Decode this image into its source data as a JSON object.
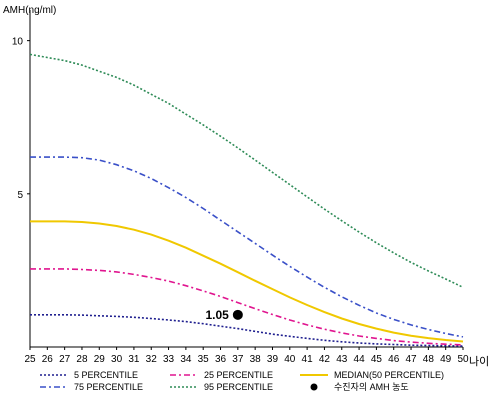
{
  "chart_data": {
    "type": "line",
    "ylabel": "AMH(ng/ml)",
    "xlabel": "나이",
    "x": [
      25,
      26,
      27,
      28,
      29,
      30,
      31,
      32,
      33,
      34,
      35,
      36,
      37,
      38,
      39,
      40,
      41,
      42,
      43,
      44,
      45,
      46,
      47,
      48,
      49,
      50
    ],
    "xlim": [
      25,
      50
    ],
    "ylim": [
      0,
      11
    ],
    "yticks": [
      5,
      10
    ],
    "series": [
      {
        "name": "5 PERCENTILE",
        "color": "#1f1f8f",
        "dash": "dotted",
        "values": [
          1.05,
          1.05,
          1.05,
          1.04,
          1.02,
          1.0,
          0.97,
          0.93,
          0.88,
          0.83,
          0.76,
          0.68,
          0.6,
          0.51,
          0.42,
          0.35,
          0.28,
          0.22,
          0.17,
          0.13,
          0.1,
          0.08,
          0.06,
          0.05,
          0.04,
          0.03
        ]
      },
      {
        "name": "25 PERCENTILE",
        "color": "#e0158f",
        "dash": "dashdot",
        "values": [
          2.55,
          2.55,
          2.55,
          2.53,
          2.5,
          2.45,
          2.37,
          2.27,
          2.15,
          2.0,
          1.83,
          1.65,
          1.45,
          1.25,
          1.06,
          0.88,
          0.72,
          0.58,
          0.46,
          0.36,
          0.28,
          0.21,
          0.16,
          0.12,
          0.09,
          0.07
        ]
      },
      {
        "name": "MEDIAN(50 PERCENTILE)",
        "color": "#f0c800",
        "dash": "solid",
        "values": [
          4.1,
          4.1,
          4.1,
          4.08,
          4.03,
          3.95,
          3.83,
          3.67,
          3.47,
          3.24,
          2.98,
          2.72,
          2.44,
          2.16,
          1.89,
          1.62,
          1.37,
          1.14,
          0.93,
          0.75,
          0.6,
          0.47,
          0.37,
          0.29,
          0.23,
          0.18
        ]
      },
      {
        "name": "75 PERCENTILE",
        "color": "#3a50c8",
        "dash": "dashdot",
        "values": [
          6.2,
          6.2,
          6.2,
          6.18,
          6.1,
          5.95,
          5.75,
          5.5,
          5.2,
          4.88,
          4.52,
          4.14,
          3.76,
          3.38,
          3.0,
          2.63,
          2.28,
          1.95,
          1.64,
          1.36,
          1.11,
          0.9,
          0.72,
          0.57,
          0.44,
          0.33
        ]
      },
      {
        "name": "95 PERCENTILE",
        "color": "#2e8b57",
        "dash": "dotted",
        "values": [
          9.55,
          9.45,
          9.35,
          9.2,
          9.0,
          8.8,
          8.55,
          8.25,
          7.95,
          7.6,
          7.25,
          6.88,
          6.5,
          6.1,
          5.7,
          5.3,
          4.9,
          4.5,
          4.12,
          3.75,
          3.4,
          3.07,
          2.76,
          2.48,
          2.22,
          1.95
        ]
      }
    ],
    "marker": {
      "label": "수진자의 AMH 농도",
      "x": 37,
      "y": 1.05,
      "value_label": "1.05"
    },
    "legend": [
      {
        "name": "5 PERCENTILE",
        "series": 0
      },
      {
        "name": "25 PERCENTILE",
        "series": 1
      },
      {
        "name": "MEDIAN(50 PERCENTILE)",
        "series": 2
      },
      {
        "name": "75 PERCENTILE",
        "series": 3
      },
      {
        "name": "95 PERCENTILE",
        "series": 4
      },
      {
        "name": "수진자의 AMH 농도",
        "marker": true
      }
    ],
    "legend_position": "bottom",
    "grid": false
  }
}
